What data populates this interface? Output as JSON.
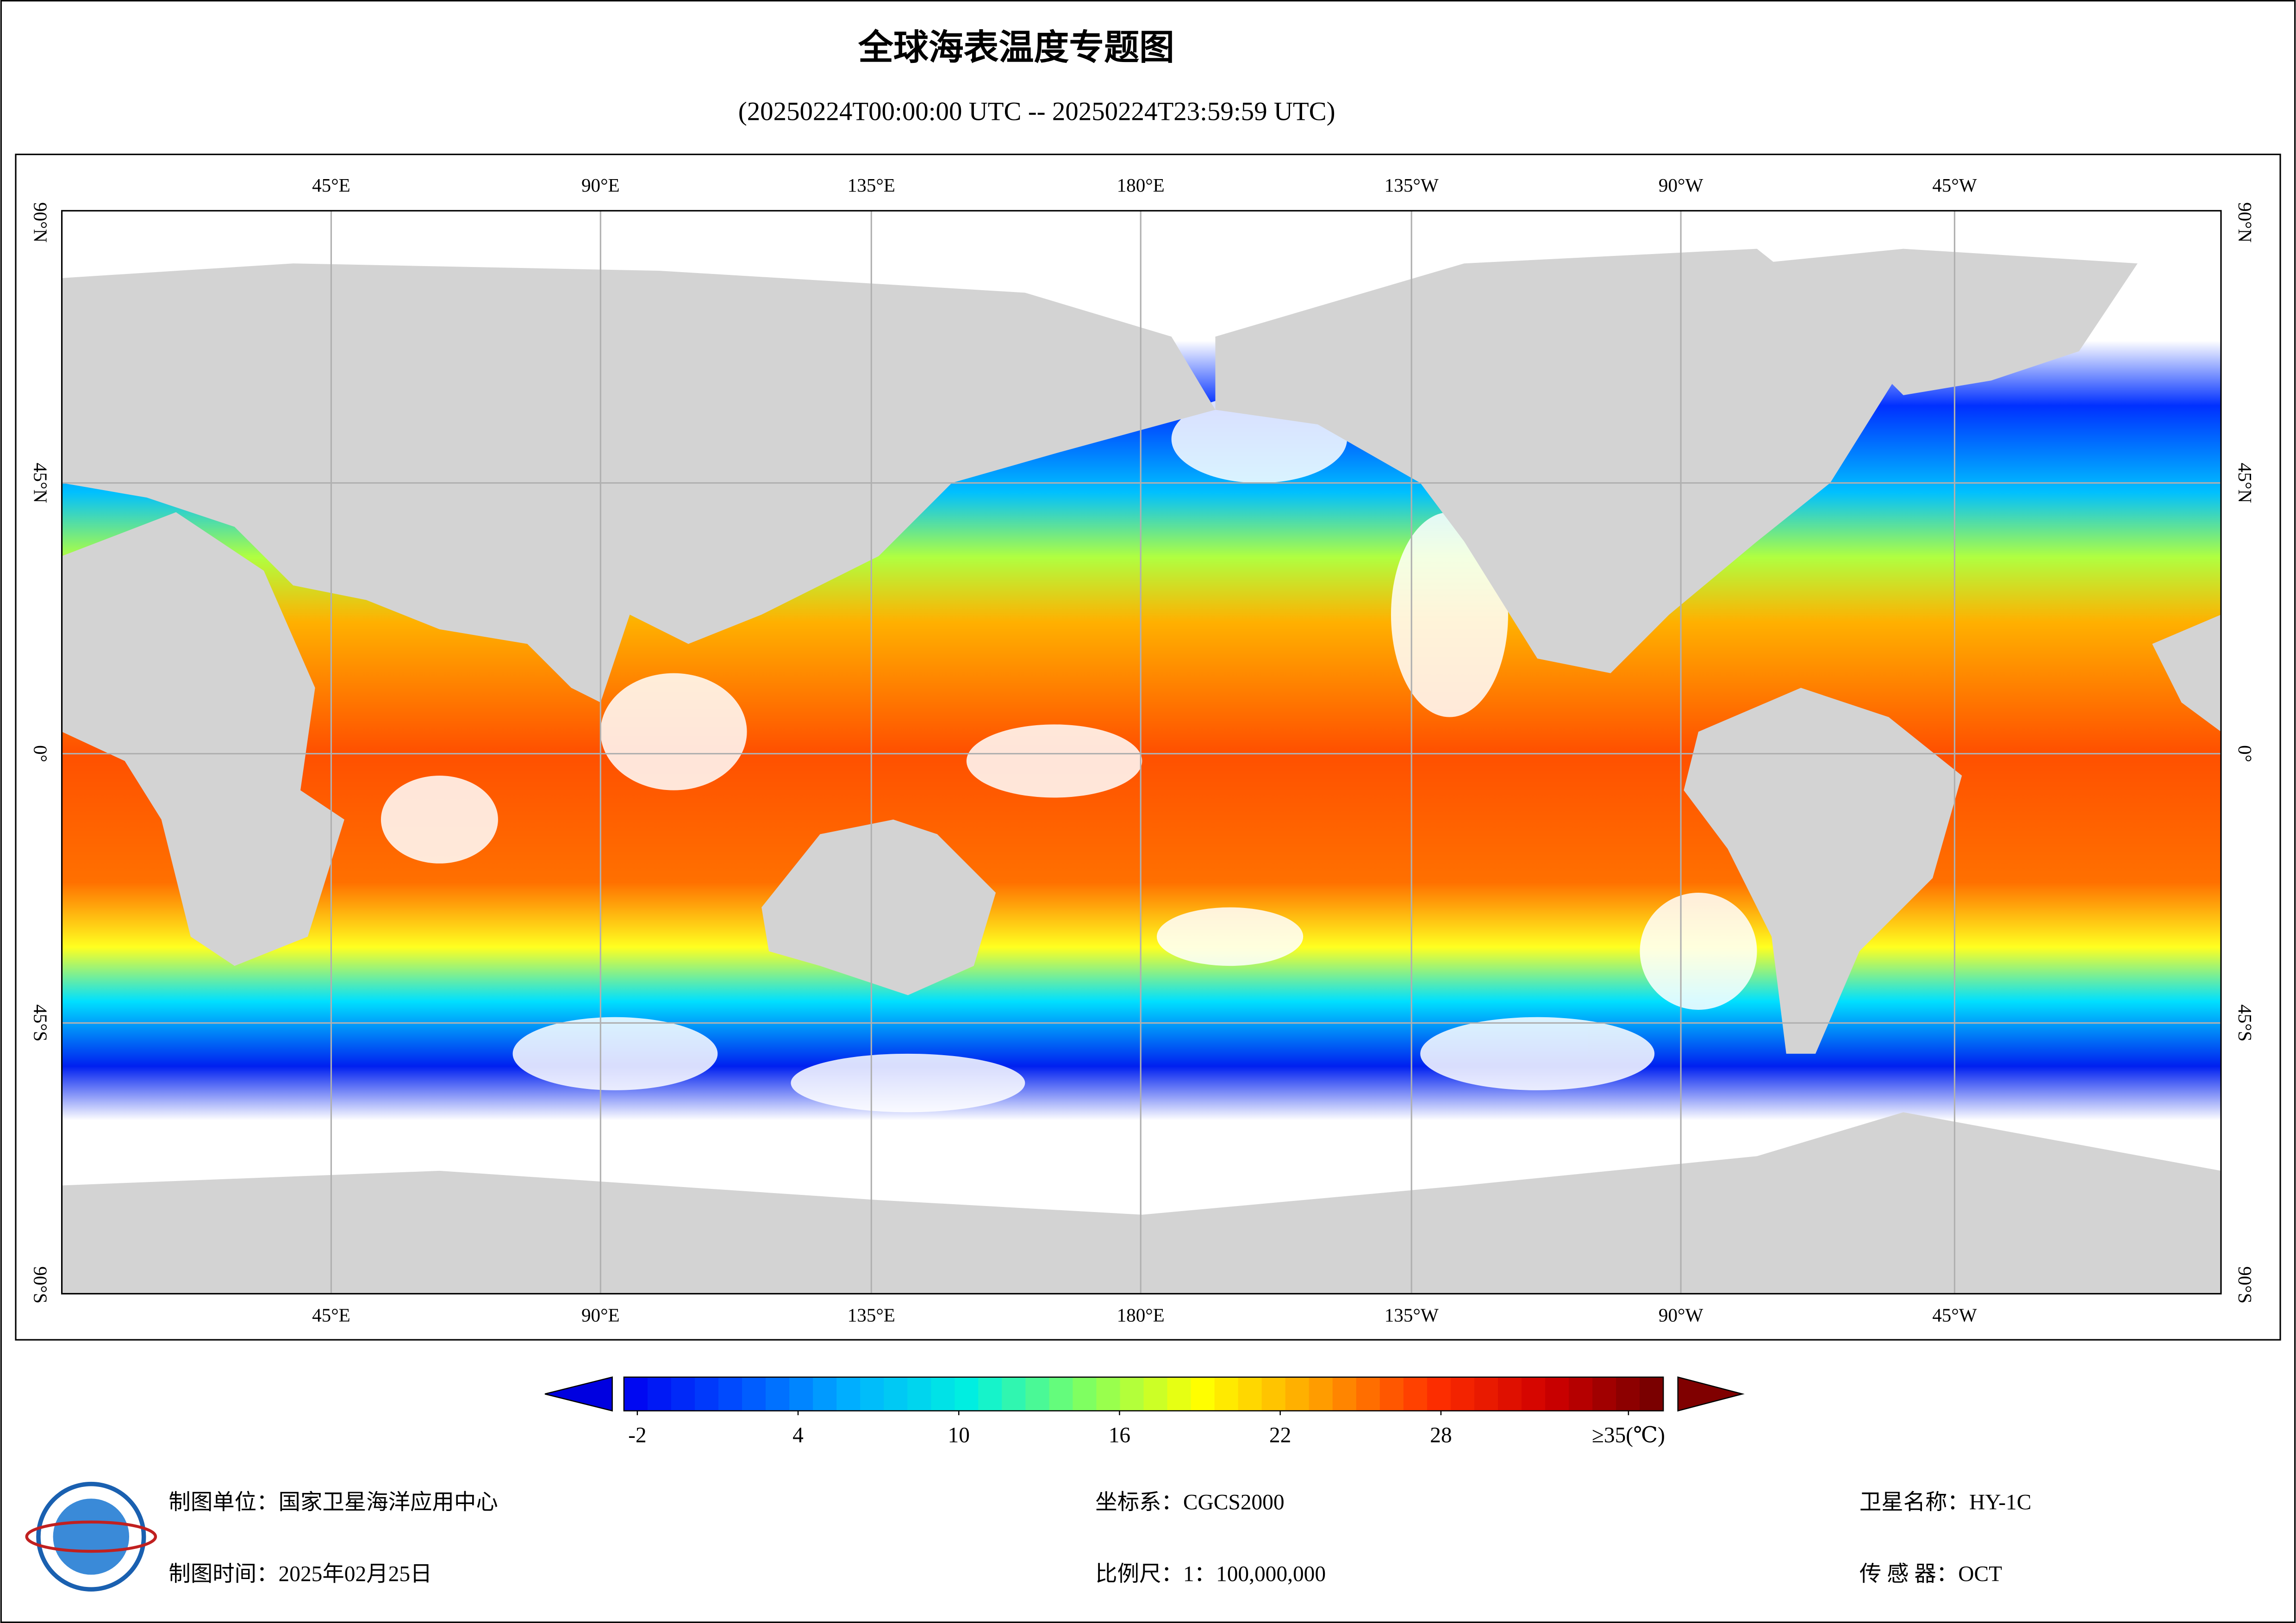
{
  "title": "全球海表温度专题图",
  "subtitle": "(20250224T00:00:00 UTC -- 20250224T23:59:59 UTC)",
  "map": {
    "lon_labels": [
      "45°E",
      "90°E",
      "135°E",
      "180°E",
      "135°W",
      "90°W",
      "45°W"
    ],
    "lat_labels": [
      "90°N",
      "45°N",
      "0°",
      "45°S",
      "90°S"
    ]
  },
  "colorbar": {
    "clim": [
      -2.5,
      36.3
    ],
    "ticks": [
      -2,
      4,
      10,
      16,
      22,
      28,
      {
        "value": 35,
        "label": "≥35(℃)"
      }
    ],
    "colors": [
      "#0000f0",
      "#0050ff",
      "#00b4ff",
      "#00f0e0",
      "#80ff60",
      "#ffff00",
      "#ffa000",
      "#ff3000",
      "#d00000",
      "#700000"
    ],
    "under_color": "#0000e0",
    "over_color": "#800000"
  },
  "footer": {
    "unit": "制图单位：国家卫星海洋应用中心",
    "date": "制图时间：2025年02月25日",
    "crs": "坐标系：CGCS2000",
    "scale": "比例尺：1：100,000,000",
    "satellite": "卫星名称：HY-1C",
    "sensor": "传 感 器：OCT"
  }
}
